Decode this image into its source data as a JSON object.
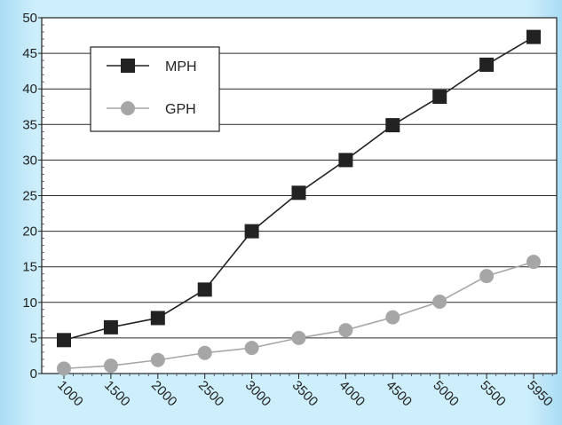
{
  "chart_data": {
    "type": "line",
    "title": "",
    "xlabel": "",
    "ylabel": "",
    "categories": [
      "1000",
      "1500",
      "2000",
      "2500",
      "3000",
      "3500",
      "4000",
      "4500",
      "5000",
      "5500",
      "5950"
    ],
    "ylim": [
      0,
      50
    ],
    "yticks": [
      "0",
      "5",
      "10",
      "15",
      "20",
      "25",
      "30",
      "35",
      "40",
      "45",
      "50"
    ],
    "grid": "horizontal",
    "legend_position": "top-left",
    "series": [
      {
        "name": "MPH",
        "marker": "square",
        "color": "#222222",
        "values": [
          4.7,
          6.5,
          7.8,
          11.8,
          20.0,
          25.4,
          30.0,
          34.9,
          38.9,
          43.4,
          47.3
        ]
      },
      {
        "name": "GPH",
        "marker": "circle",
        "color": "#a6a6a6",
        "values": [
          0.7,
          1.1,
          1.9,
          2.9,
          3.6,
          5.0,
          6.1,
          7.9,
          10.1,
          13.7,
          15.7
        ]
      }
    ]
  }
}
